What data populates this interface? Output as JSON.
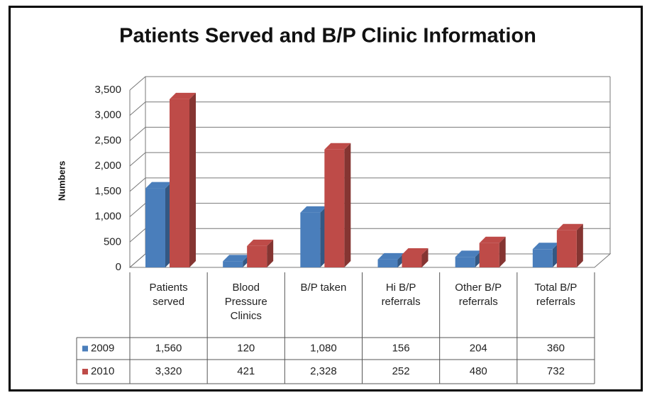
{
  "chart_data": {
    "type": "bar3d",
    "title": "Patients Served and B/P Clinic Information",
    "y_label": "Numbers",
    "categories": [
      "Patients served",
      "Blood Pressure Clinics",
      "B/P taken",
      "Hi B/P referrals",
      "Other B/P referrals",
      "Total B/P referrals"
    ],
    "series": [
      {
        "name": "2009",
        "color": "#4a7ebb",
        "values": [
          1560,
          120,
          1080,
          156,
          204,
          360
        ],
        "value_labels": [
          "1,560",
          "120",
          "1,080",
          "156",
          "204",
          "360"
        ]
      },
      {
        "name": "2010",
        "color": "#be4b48",
        "values": [
          3320,
          421,
          2328,
          252,
          480,
          732
        ],
        "value_labels": [
          "3,320",
          "421",
          "2,328",
          "252",
          "480",
          "732"
        ]
      }
    ],
    "ylim": [
      0,
      3500
    ],
    "yticks": [
      0,
      500,
      {
        "value": 1000,
        "label": "1,000"
      },
      {
        "value": 1500,
        "label": "1,500"
      },
      {
        "value": 2000,
        "label": "2,000"
      },
      {
        "value": 2500,
        "label": "2,500"
      },
      {
        "value": 3000,
        "label": "3,000"
      },
      {
        "value": 3500,
        "label": "3,500"
      }
    ],
    "grid": true
  }
}
